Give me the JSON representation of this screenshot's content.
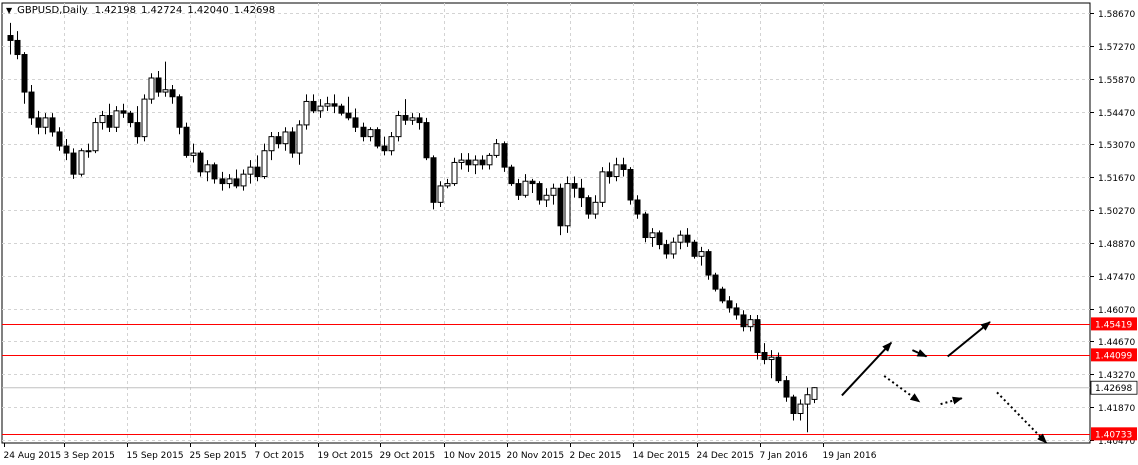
{
  "header": {
    "menu_icon": "triangle-down-icon",
    "symbol": "GBPUSD,Daily",
    "open": "1.42198",
    "high": "1.42724",
    "low": "1.42040",
    "close": "1.42698"
  },
  "colors": {
    "background": "#ffffff",
    "grid": "#d3d3d3",
    "axis": "#000000",
    "bull_candle": "#ffffff",
    "bear_candle": "#000000",
    "level_line": "#ff0000",
    "current_price_line": "#c0c0c0",
    "current_price_label_bg": "#ffffff",
    "level_label_bg": "#ff0000",
    "level_label_text": "#ffffff"
  },
  "chart_data": {
    "type": "candlestick",
    "ylim": [
      1.4047,
      1.5867
    ],
    "y_ticks": [
      "1.58670",
      "1.57270",
      "1.55870",
      "1.54470",
      "1.53070",
      "1.51670",
      "1.50270",
      "1.48870",
      "1.47470",
      "1.46070",
      "1.44670",
      "1.43270",
      "1.41870",
      "1.40470"
    ],
    "x_ticks": [
      "24 Aug 2015",
      "3 Sep 2015",
      "15 Sep 2015",
      "25 Sep 2015",
      "7 Oct 2015",
      "19 Oct 2015",
      "29 Oct 2015",
      "10 Nov 2015",
      "20 Nov 2015",
      "2 Dec 2015",
      "14 Dec 2015",
      "24 Dec 2015",
      "7 Jan 2016",
      "19 Jan 2016"
    ],
    "grid": true,
    "current_price": "1.42698",
    "levels": [
      {
        "label": "1.45419",
        "value": 1.45419
      },
      {
        "label": "1.44099",
        "value": 1.44099
      },
      {
        "label": "1.40733",
        "value": 1.40733
      }
    ],
    "candles": [
      [
        1.5771,
        1.5825,
        1.569,
        1.575
      ],
      [
        1.575,
        1.579,
        1.567,
        1.569
      ],
      [
        1.569,
        1.57,
        1.548,
        1.553
      ],
      [
        1.553,
        1.556,
        1.539,
        1.542
      ],
      [
        1.542,
        1.545,
        1.535,
        1.538
      ],
      [
        1.538,
        1.544,
        1.535,
        1.542
      ],
      [
        1.542,
        1.544,
        1.534,
        1.536
      ],
      [
        1.536,
        1.538,
        1.528,
        1.53
      ],
      [
        1.53,
        1.533,
        1.524,
        1.527
      ],
      [
        1.527,
        1.529,
        1.516,
        1.518
      ],
      [
        1.518,
        1.529,
        1.517,
        1.528
      ],
      [
        1.528,
        1.531,
        1.525,
        1.528
      ],
      [
        1.528,
        1.542,
        1.527,
        1.54
      ],
      [
        1.54,
        1.545,
        1.537,
        1.543
      ],
      [
        1.543,
        1.548,
        1.536,
        1.538
      ],
      [
        1.538,
        1.547,
        1.536,
        1.545
      ],
      [
        1.545,
        1.548,
        1.542,
        1.544
      ],
      [
        1.544,
        1.545,
        1.538,
        1.54
      ],
      [
        1.54,
        1.547,
        1.531,
        1.534
      ],
      [
        1.534,
        1.552,
        1.532,
        1.55
      ],
      [
        1.55,
        1.561,
        1.548,
        1.559
      ],
      [
        1.559,
        1.562,
        1.551,
        1.553
      ],
      [
        1.553,
        1.566,
        1.551,
        1.554
      ],
      [
        1.554,
        1.556,
        1.548,
        1.551
      ],
      [
        1.551,
        1.552,
        1.535,
        1.538
      ],
      [
        1.538,
        1.54,
        1.525,
        1.526
      ],
      [
        1.526,
        1.531,
        1.523,
        1.527
      ],
      [
        1.527,
        1.528,
        1.517,
        1.519
      ],
      [
        1.519,
        1.524,
        1.515,
        1.522
      ],
      [
        1.522,
        1.523,
        1.514,
        1.516
      ],
      [
        1.516,
        1.519,
        1.511,
        1.514
      ],
      [
        1.514,
        1.518,
        1.512,
        1.516
      ],
      [
        1.516,
        1.52,
        1.512,
        1.513
      ],
      [
        1.513,
        1.52,
        1.511,
        1.518
      ],
      [
        1.518,
        1.524,
        1.514,
        1.521
      ],
      [
        1.521,
        1.526,
        1.515,
        1.517
      ],
      [
        1.517,
        1.531,
        1.516,
        1.528
      ],
      [
        1.528,
        1.536,
        1.524,
        1.534
      ],
      [
        1.534,
        1.536,
        1.529,
        1.531
      ],
      [
        1.531,
        1.538,
        1.528,
        1.536
      ],
      [
        1.536,
        1.538,
        1.525,
        1.527
      ],
      [
        1.527,
        1.541,
        1.522,
        1.539
      ],
      [
        1.539,
        1.552,
        1.537,
        1.549
      ],
      [
        1.549,
        1.552,
        1.544,
        1.545
      ],
      [
        1.545,
        1.55,
        1.542,
        1.547
      ],
      [
        1.547,
        1.551,
        1.545,
        1.548
      ],
      [
        1.548,
        1.552,
        1.544,
        1.547
      ],
      [
        1.547,
        1.548,
        1.543,
        1.544
      ],
      [
        1.544,
        1.551,
        1.541,
        1.542
      ],
      [
        1.542,
        1.546,
        1.536,
        1.538
      ],
      [
        1.538,
        1.54,
        1.532,
        1.534
      ],
      [
        1.534,
        1.538,
        1.532,
        1.537
      ],
      [
        1.537,
        1.538,
        1.529,
        1.53
      ],
      [
        1.53,
        1.534,
        1.526,
        1.528
      ],
      [
        1.528,
        1.536,
        1.526,
        1.534
      ],
      [
        1.534,
        1.545,
        1.532,
        1.543
      ],
      [
        1.543,
        1.55,
        1.539,
        1.541
      ],
      [
        1.541,
        1.544,
        1.539,
        1.542
      ],
      [
        1.542,
        1.544,
        1.537,
        1.54
      ],
      [
        1.54,
        1.542,
        1.524,
        1.525
      ],
      [
        1.525,
        1.526,
        1.503,
        1.506
      ],
      [
        1.506,
        1.515,
        1.504,
        1.513
      ],
      [
        1.513,
        1.516,
        1.512,
        1.514
      ],
      [
        1.514,
        1.525,
        1.513,
        1.523
      ],
      [
        1.523,
        1.527,
        1.52,
        1.524
      ],
      [
        1.524,
        1.527,
        1.519,
        1.522
      ],
      [
        1.522,
        1.526,
        1.518,
        1.524
      ],
      [
        1.524,
        1.526,
        1.52,
        1.522
      ],
      [
        1.522,
        1.527,
        1.52,
        1.526
      ],
      [
        1.526,
        1.533,
        1.525,
        1.531
      ],
      [
        1.531,
        1.532,
        1.519,
        1.521
      ],
      [
        1.521,
        1.522,
        1.513,
        1.514
      ],
      [
        1.514,
        1.516,
        1.507,
        1.509
      ],
      [
        1.509,
        1.518,
        1.508,
        1.515
      ],
      [
        1.515,
        1.516,
        1.51,
        1.514
      ],
      [
        1.514,
        1.515,
        1.505,
        1.507
      ],
      [
        1.507,
        1.512,
        1.504,
        1.509
      ],
      [
        1.509,
        1.514,
        1.505,
        1.512
      ],
      [
        1.512,
        1.514,
        1.492,
        1.496
      ],
      [
        1.496,
        1.517,
        1.493,
        1.514
      ],
      [
        1.514,
        1.517,
        1.508,
        1.512
      ],
      [
        1.512,
        1.516,
        1.504,
        1.508
      ],
      [
        1.508,
        1.509,
        1.499,
        1.501
      ],
      [
        1.501,
        1.509,
        1.499,
        1.506
      ],
      [
        1.506,
        1.521,
        1.504,
        1.519
      ],
      [
        1.519,
        1.523,
        1.514,
        1.517
      ],
      [
        1.517,
        1.525,
        1.515,
        1.522
      ],
      [
        1.522,
        1.525,
        1.517,
        1.52
      ],
      [
        1.52,
        1.521,
        1.505,
        1.507
      ],
      [
        1.507,
        1.509,
        1.499,
        1.501
      ],
      [
        1.501,
        1.502,
        1.489,
        1.491
      ],
      [
        1.491,
        1.495,
        1.487,
        1.493
      ],
      [
        1.493,
        1.494,
        1.486,
        1.488
      ],
      [
        1.488,
        1.49,
        1.482,
        1.484
      ],
      [
        1.484,
        1.491,
        1.482,
        1.489
      ],
      [
        1.489,
        1.494,
        1.486,
        1.492
      ],
      [
        1.492,
        1.495,
        1.487,
        1.489
      ],
      [
        1.489,
        1.49,
        1.482,
        1.483
      ],
      [
        1.483,
        1.487,
        1.479,
        1.485
      ],
      [
        1.485,
        1.486,
        1.473,
        1.475
      ],
      [
        1.475,
        1.476,
        1.468,
        1.469
      ],
      [
        1.469,
        1.47,
        1.463,
        1.464
      ],
      [
        1.464,
        1.466,
        1.459,
        1.461
      ],
      [
        1.461,
        1.463,
        1.456,
        1.458
      ],
      [
        1.458,
        1.46,
        1.451,
        1.453
      ],
      [
        1.453,
        1.458,
        1.451,
        1.456
      ],
      [
        1.456,
        1.458,
        1.439,
        1.442
      ],
      [
        1.442,
        1.446,
        1.437,
        1.439
      ],
      [
        1.439,
        1.443,
        1.431,
        1.44
      ],
      [
        1.44,
        1.442,
        1.429,
        1.43
      ],
      [
        1.43,
        1.432,
        1.421,
        1.423
      ],
      [
        1.423,
        1.424,
        1.413,
        1.416
      ],
      [
        1.416,
        1.422,
        1.413,
        1.42
      ],
      [
        1.42,
        1.427,
        1.408,
        1.424
      ],
      [
        1.422,
        1.4272,
        1.4204,
        1.427
      ]
    ]
  },
  "annotations": [
    {
      "name": "bullish-projection-arrow-1",
      "style": "solid",
      "from": [
        118,
        1.4237
      ],
      "to": [
        125,
        1.4462
      ]
    },
    {
      "name": "pullback-arrow",
      "style": "solid",
      "from": [
        128,
        1.443
      ],
      "to": [
        130,
        1.4403
      ]
    },
    {
      "name": "bullish-projection-arrow-2",
      "style": "solid",
      "from": [
        133,
        1.4403
      ],
      "to": [
        139,
        1.455
      ]
    },
    {
      "name": "bearish-dotted-arrow-1",
      "style": "dotted",
      "from": [
        124,
        1.432
      ],
      "to": [
        129,
        1.421
      ]
    },
    {
      "name": "bearish-dotted-arrow-2",
      "style": "dotted",
      "from": [
        132,
        1.42
      ],
      "to": [
        135,
        1.4225
      ]
    },
    {
      "name": "bearish-dotted-arrow-3",
      "style": "dotted",
      "from": [
        140,
        1.425
      ],
      "to": [
        147,
        1.4035
      ]
    }
  ]
}
